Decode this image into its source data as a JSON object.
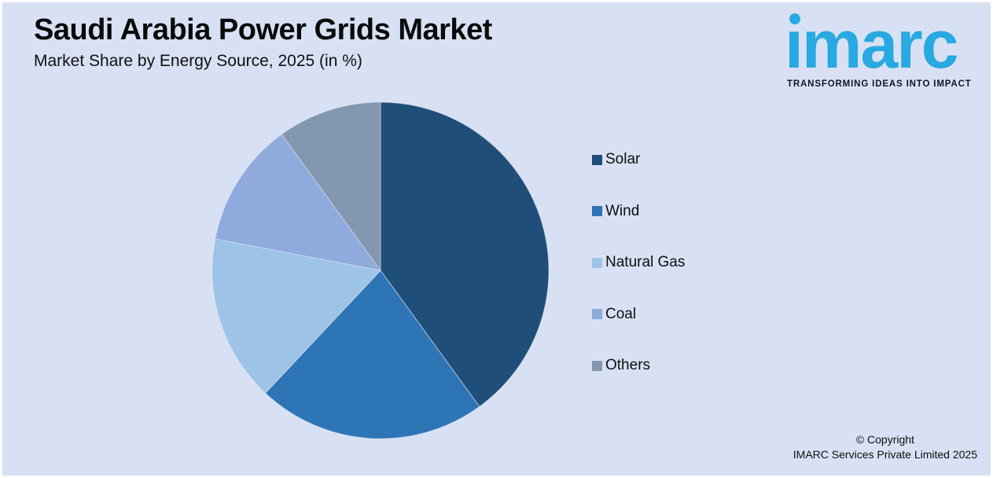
{
  "page": {
    "background": "#D8E1F3",
    "frame_color": "#FFFFFF"
  },
  "header": {
    "title": "Saudi Arabia Power Grids Market",
    "subtitle": "Market Share by Energy Source, 2025 (in %)"
  },
  "logo": {
    "brand": "imarc",
    "tagline": "TRANSFORMING IDEAS INTO IMPACT",
    "brand_color": "#29A9E1",
    "tagline_color": "#12122B"
  },
  "chart_data": {
    "type": "pie",
    "title": "Saudi Arabia Power Grids Market",
    "subtitle": "Market Share by Energy Source, 2025 (in %)",
    "unit": "%",
    "categories": [
      "Solar",
      "Wind",
      "Natural Gas",
      "Coal",
      "Others"
    ],
    "values": [
      40,
      22,
      16,
      12,
      10
    ],
    "colors": [
      "#1F4E79",
      "#2E75B6",
      "#9DC3E6",
      "#8FAADC",
      "#8497B0"
    ],
    "start_angle_deg": 0,
    "direction": "clockwise",
    "legend_position": "right",
    "data_labels": false
  },
  "footer": {
    "copyright_line1": "© Copyright",
    "copyright_line2": "IMARC Services Private Limited 2025"
  }
}
